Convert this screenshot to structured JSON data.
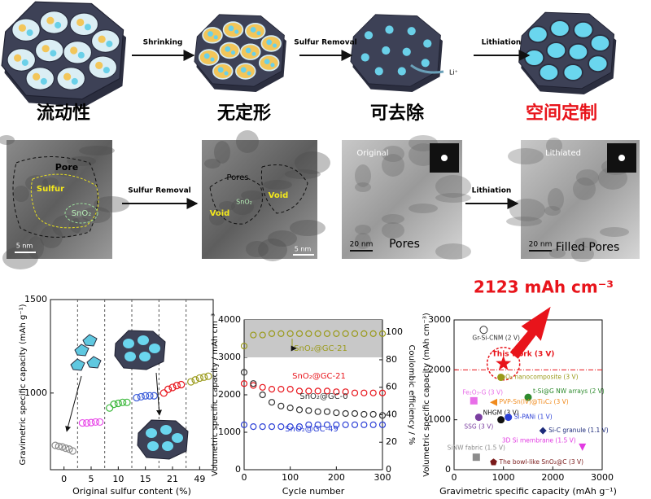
{
  "schematic": {
    "steps": [
      "Shrinking",
      "Sulfur Removal",
      "Lithiation"
    ],
    "ion": "Li⁺",
    "labels": [
      "流动性",
      "无定形",
      "可去除",
      "空间定制"
    ],
    "highlight_color": "#e8141b"
  },
  "micrographs": {
    "panel1": {
      "labels": [
        "Pore",
        "Sulfur",
        "SnO₂"
      ],
      "scale": "5 nm"
    },
    "step1": "Sulfur Removal",
    "panel2": {
      "labels": [
        "Pores",
        "SnO₂",
        "Void",
        "Void"
      ],
      "scale": "5 nm"
    },
    "panel3": {
      "labels": [
        "Original",
        "Pores"
      ],
      "scale": "20 nm"
    },
    "step2": "Lithiation",
    "panel4": {
      "labels": [
        "Lithiated",
        "Filled Pores"
      ],
      "scale": "20 nm"
    }
  },
  "chart_data": [
    {
      "type": "scatter",
      "ylabel": "Gravimetric specific capacity (mAh g⁻¹)",
      "xlabel": "Original sulfur content (%)",
      "categories": [
        "0",
        "5",
        "10",
        "15",
        "21",
        "49"
      ],
      "series": [
        {
          "color": "#8c8c8c",
          "values": [
            720,
            715,
            712,
            705,
            700,
            690
          ]
        },
        {
          "color": "#e84be8",
          "values": [
            840,
            840,
            842,
            845,
            845
          ]
        },
        {
          "color": "#3cb83c",
          "values": [
            920,
            940,
            945,
            950,
            950
          ]
        },
        {
          "color": "#3a5bd9",
          "values": [
            975,
            980,
            985,
            985,
            985
          ]
        },
        {
          "color": "#e8141b",
          "values": [
            1000,
            1020,
            1030,
            1040,
            1045
          ]
        },
        {
          "color": "#9a9a1a",
          "values": [
            1060,
            1070,
            1080,
            1085,
            1090
          ]
        }
      ],
      "ylim": [
        590,
        1500
      ],
      "yticks": [
        1000,
        1500
      ]
    },
    {
      "type": "line",
      "ylabel": "Volumetric specific capacity / mAh cm⁻³",
      "y2label": "Coulombic efficiency / %",
      "xlabel": "Cycle number",
      "x": [
        0,
        20,
        40,
        60,
        80,
        100,
        120,
        140,
        160,
        180,
        200,
        220,
        240,
        260,
        280,
        300
      ],
      "xlim": [
        0,
        300
      ],
      "xticks": [
        0,
        100,
        200,
        300
      ],
      "ylim": [
        0,
        4000
      ],
      "yticks": [
        0,
        1000,
        2000,
        3000,
        4000
      ],
      "y2lim": [
        0,
        109
      ],
      "y2ticks": [
        0,
        20,
        40,
        60,
        80,
        100
      ],
      "band": [
        3000,
        4000
      ],
      "series": [
        {
          "name": "SnO₂@GC-21",
          "color": "#e8141b",
          "values": [
            2300,
            2250,
            2200,
            2150,
            2150,
            2150,
            2100,
            2100,
            2100,
            2100,
            2080,
            2080,
            2050,
            2050,
            2050,
            2050
          ]
        },
        {
          "name": "SnO₂@GC-0",
          "color": "#333333",
          "values": [
            2600,
            2300,
            2000,
            1800,
            1700,
            1650,
            1600,
            1580,
            1550,
            1550,
            1520,
            1500,
            1500,
            1480,
            1480,
            1450
          ]
        },
        {
          "name": "SnO₂@GC-49",
          "color": "#2b3fd6",
          "values": [
            1200,
            1150,
            1150,
            1150,
            1150,
            1150,
            1150,
            1200,
            1200,
            1200,
            1200,
            1200,
            1200,
            1200,
            1200,
            1200
          ]
        },
        {
          "name": "SnO₂@GC-21",
          "color": "#9a9a1a",
          "axis": "y2",
          "values": [
            90,
            98,
            98,
            99,
            99,
            99,
            99,
            99,
            99,
            99,
            99,
            99,
            99,
            99,
            99,
            99
          ]
        }
      ]
    },
    {
      "type": "scatter",
      "ylabel": "Volumetric specific capacity (mAh cm⁻³)",
      "xlabel": "Gravimetric specific capacity (mAh g⁻¹)",
      "xlim": [
        0,
        3000
      ],
      "xticks": [
        0,
        1000,
        2000,
        3000
      ],
      "ylim": [
        0,
        3000
      ],
      "yticks": [
        0,
        1000,
        2000,
        3000
      ],
      "reference_line": 2000,
      "annotation": "2123 mAh cm⁻³",
      "series": [
        {
          "name": "Gr-Si-CNM (2 V)",
          "color": "#333333",
          "marker": "circle-open",
          "x": [
            600
          ],
          "values": [
            2800
          ]
        },
        {
          "name": "This work (3 V)",
          "color": "#e8141b",
          "marker": "star",
          "x": [
            1000
          ],
          "values": [
            2123
          ]
        },
        {
          "name": "SnO₂ nanocomposite (3 V)",
          "color": "#9a9a1a",
          "marker": "circle",
          "x": [
            950
          ],
          "values": [
            1850
          ]
        },
        {
          "name": "Fe₂O₃-G (3 V)",
          "color": "#e86ee8",
          "marker": "square",
          "x": [
            400
          ],
          "values": [
            1380
          ]
        },
        {
          "name": "t-Si@G NW arrays (2 V)",
          "color": "#2e8b2e",
          "marker": "circle",
          "x": [
            1500
          ],
          "values": [
            1450
          ]
        },
        {
          "name": "PVP-Sn(IV)@Ti₃C₂ (3 V)",
          "color": "#f08a1c",
          "marker": "triangle-left",
          "x": [
            800
          ],
          "values": [
            1350
          ]
        },
        {
          "name": "SSG (3 V)",
          "color": "#7a3fa0",
          "marker": "circle",
          "x": [
            500
          ],
          "values": [
            1050
          ]
        },
        {
          "name": "NHGM (3 V)",
          "color": "#111111",
          "marker": "circle",
          "x": [
            950
          ],
          "values": [
            1000
          ]
        },
        {
          "name": "Si-PANi (1 V)",
          "color": "#2b3fd6",
          "marker": "circle",
          "x": [
            1100
          ],
          "values": [
            1050
          ]
        },
        {
          "name": "Si-C granule (1.1 V)",
          "color": "#1c2a7a",
          "marker": "diamond",
          "x": [
            1800
          ],
          "values": [
            780
          ]
        },
        {
          "name": "3D Si membrane (1.5 V)",
          "color": "#e23be2",
          "marker": "triangle-down",
          "x": [
            2600
          ],
          "values": [
            450
          ]
        },
        {
          "name": "SiNW fabric (1.5 V)",
          "color": "#8c8c8c",
          "marker": "square",
          "x": [
            450
          ],
          "values": [
            250
          ]
        },
        {
          "name": "The bowl-like SnO₂@C (3 V)",
          "color": "#7a1a1a",
          "marker": "pentagon",
          "x": [
            800
          ],
          "values": [
            150
          ]
        }
      ]
    }
  ]
}
